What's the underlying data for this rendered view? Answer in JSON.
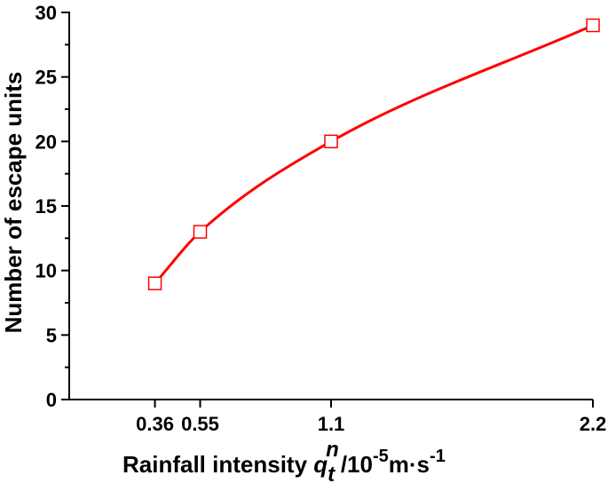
{
  "chart_data": {
    "type": "line",
    "title": "",
    "xlabel": {
      "prefix": "Rainfall intensity ",
      "symbol": "q",
      "symbol_sub": "t",
      "symbol_sup": "n",
      "unit_base": "/10",
      "unit_exp": "-5",
      "unit_mid": "m·s",
      "unit_exp2": "-1"
    },
    "ylabel": "Number of escape units",
    "x": [
      0.36,
      0.55,
      1.1,
      2.2
    ],
    "x_tick_labels": [
      "0.36",
      "0.55",
      "1.1",
      "2.2"
    ],
    "y": [
      9,
      13,
      20,
      29
    ],
    "ylim": [
      0,
      30
    ],
    "xlim": [
      0,
      2.2
    ],
    "y_ticks": [
      0,
      5,
      10,
      15,
      20,
      25,
      30
    ],
    "y_tick_labels": [
      "0",
      "5",
      "10",
      "15",
      "20",
      "25",
      "30"
    ],
    "line_color": "#ff0000",
    "marker": "open-square",
    "marker_color": "#ff0000",
    "grid": false,
    "legend": "none"
  }
}
